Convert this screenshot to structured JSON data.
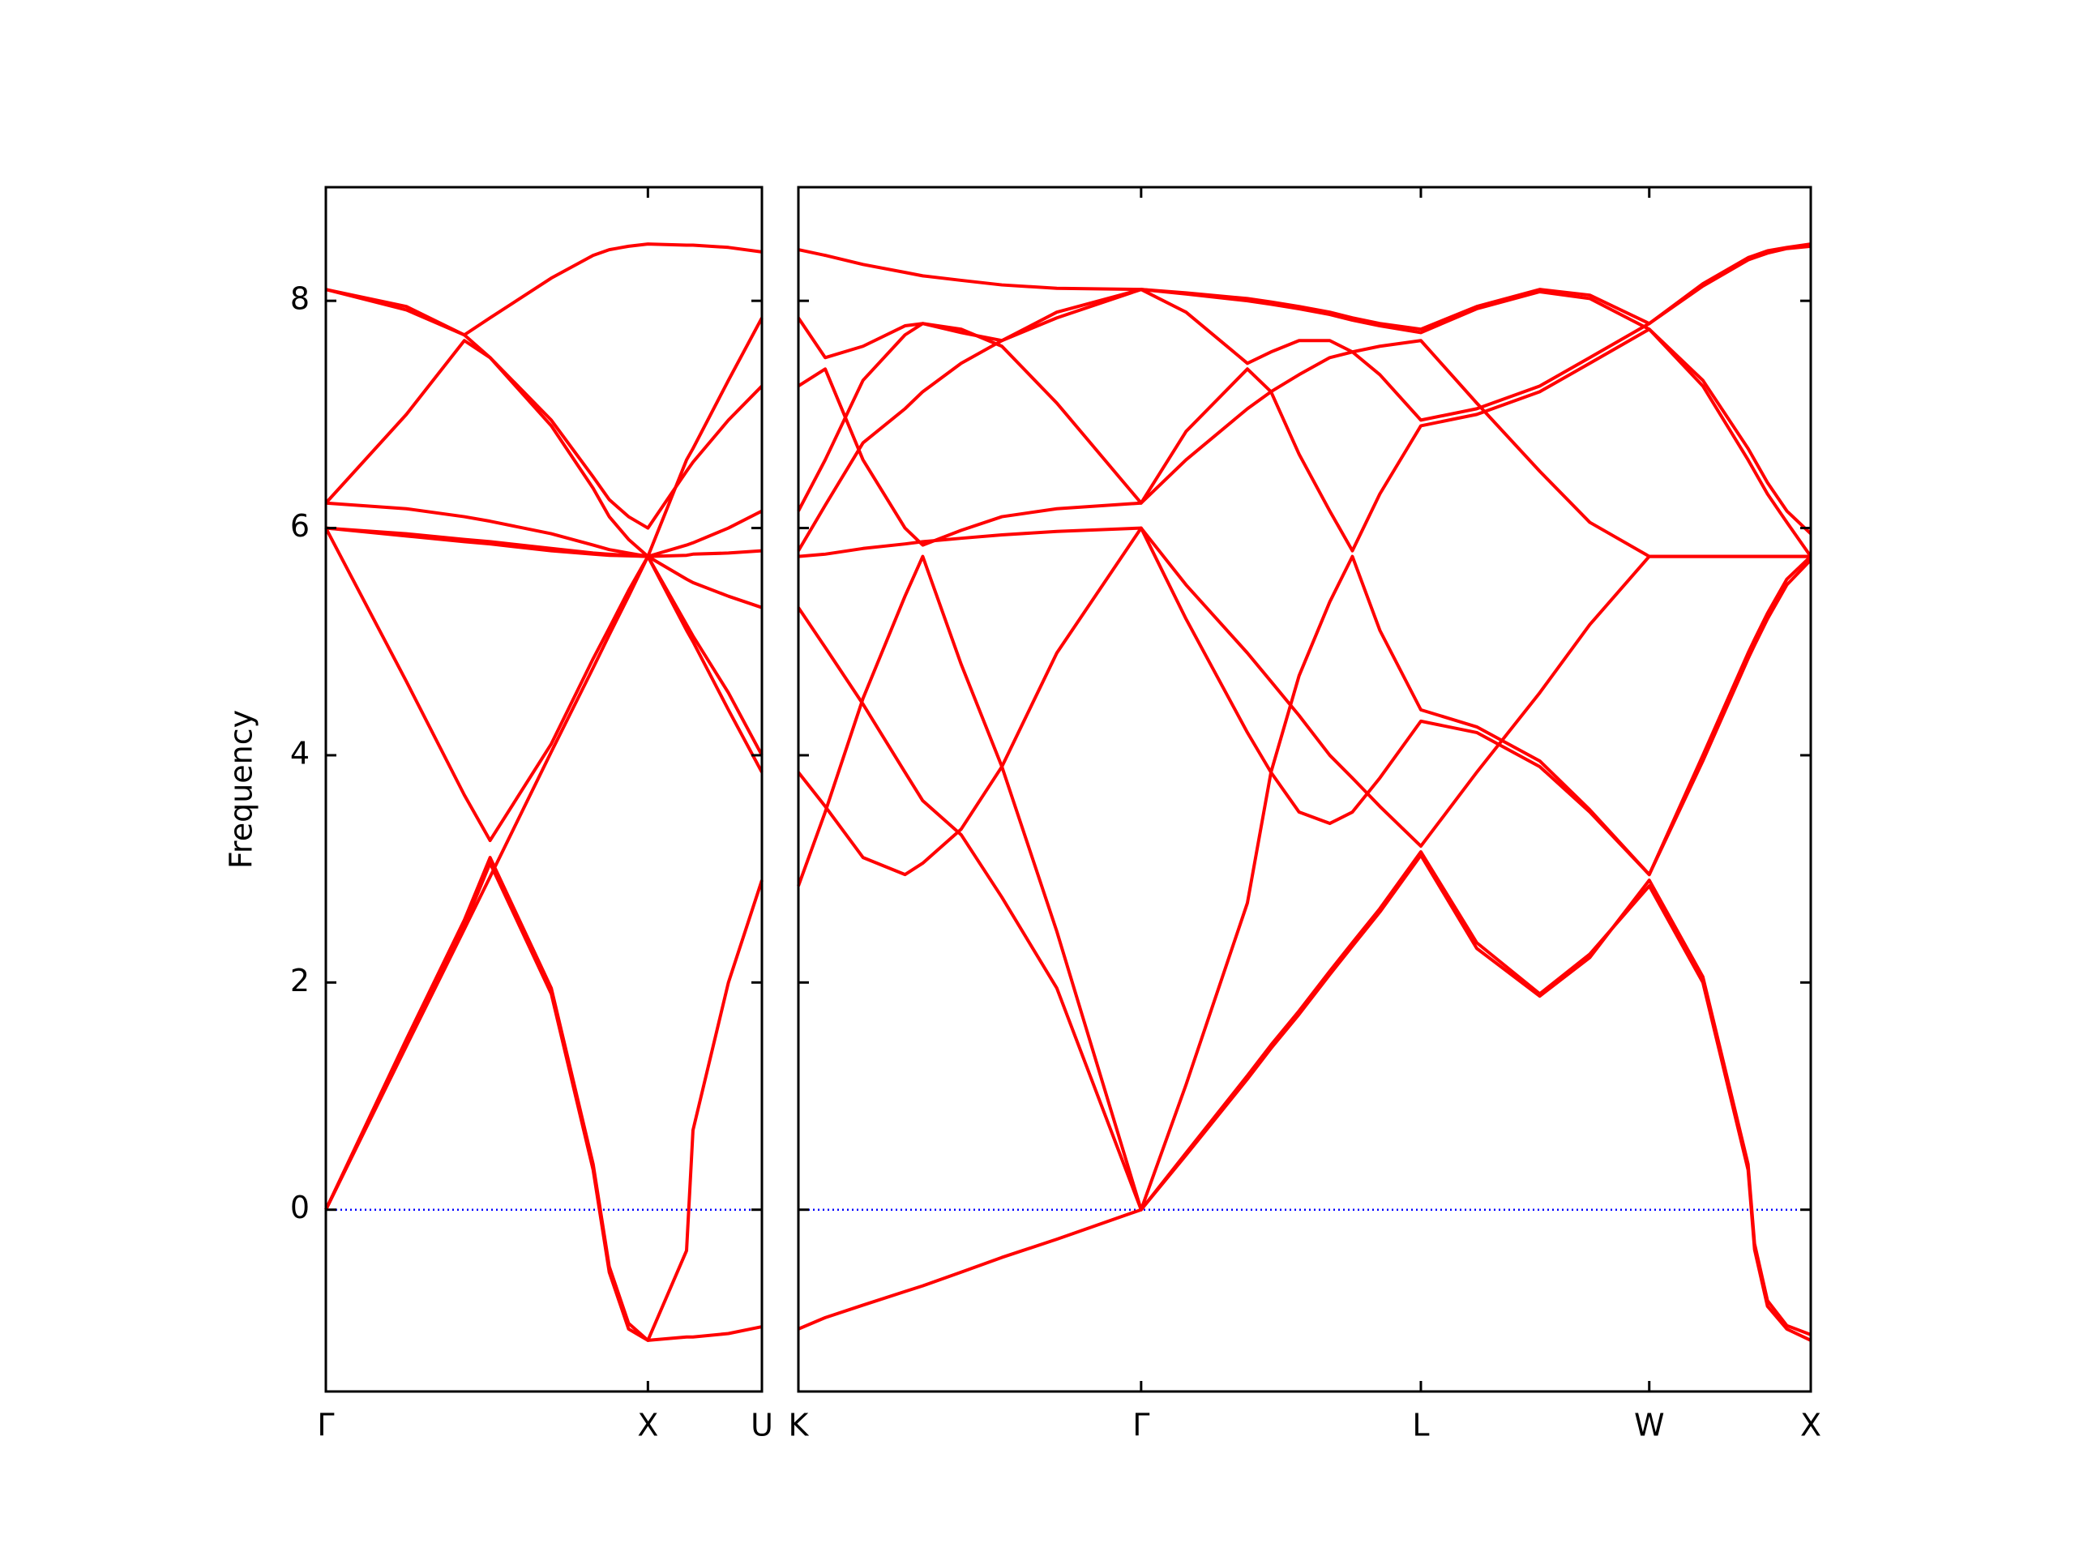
{
  "chart_data": [
    {
      "type": "line",
      "ylabel": "Frequency",
      "color": "#ff0000",
      "zero_line": "#0000ff",
      "xlim": [
        0,
        1.354
      ],
      "ylim": [
        -1.6,
        9.0
      ],
      "xticks": [
        {
          "value": 0,
          "label": "Γ"
        },
        {
          "value": 1,
          "label": "X"
        },
        {
          "value": 1.354,
          "label": "U"
        }
      ],
      "yticks": [
        0,
        2,
        4,
        6,
        8
      ],
      "x": [
        0,
        0.25,
        0.43,
        0.51,
        0.7,
        0.83,
        0.88,
        0.94,
        1.0,
        1.12,
        1.14,
        1.25,
        1.354
      ],
      "series": [
        {
          "values": [
            0,
            1.44,
            2.47,
            2.93,
            4.03,
            4.77,
            5.06,
            5.4,
            5.75,
            5.15,
            5.05,
            4.55,
            4.0
          ]
        },
        {
          "values": [
            0,
            1.5,
            2.55,
            3.1,
            1.95,
            0.4,
            -0.5,
            -1.0,
            -1.15,
            -1.12,
            -1.12,
            -1.09,
            -1.03
          ]
        },
        {
          "values": [
            0,
            1.45,
            2.5,
            3.05,
            1.9,
            0.35,
            -0.55,
            -1.05,
            -1.15,
            -0.36,
            0.7,
            2.0,
            2.9
          ]
        },
        {
          "values": [
            6.0,
            4.65,
            3.65,
            3.25,
            4.1,
            4.85,
            5.12,
            5.45,
            5.75,
            5.1,
            5.0,
            4.4,
            3.85
          ]
        },
        {
          "values": [
            6.0,
            5.95,
            5.9,
            5.88,
            5.82,
            5.78,
            5.77,
            5.76,
            5.75,
            5.85,
            5.87,
            6.0,
            6.15
          ]
        },
        {
          "values": [
            6.0,
            5.93,
            5.88,
            5.86,
            5.8,
            5.77,
            5.76,
            5.755,
            5.75,
            5.76,
            5.77,
            5.78,
            5.8
          ]
        },
        {
          "values": [
            6.22,
            6.17,
            6.1,
            6.06,
            5.95,
            5.85,
            5.81,
            5.78,
            5.75,
            5.55,
            5.52,
            5.4,
            5.3
          ]
        },
        {
          "values": [
            6.22,
            7.0,
            7.65,
            7.5,
            6.95,
            6.45,
            6.25,
            6.1,
            6.0,
            6.5,
            6.58,
            6.95,
            7.25
          ]
        },
        {
          "values": [
            8.1,
            7.95,
            7.7,
            7.5,
            6.9,
            6.35,
            6.1,
            5.9,
            5.75,
            6.6,
            6.7,
            7.3,
            7.85
          ]
        },
        {
          "values": [
            8.1,
            7.92,
            7.7,
            7.85,
            8.2,
            8.4,
            8.45,
            8.48,
            8.5,
            8.49,
            8.49,
            8.47,
            8.43
          ]
        }
      ]
    },
    {
      "type": "line",
      "color": "#ff0000",
      "zero_line": "#0000ff",
      "ytick_labels": false,
      "xlim": [
        0,
        3.134
      ],
      "ylim": [
        -1.6,
        9.0
      ],
      "xticks": [
        {
          "value": 0,
          "label": "K"
        },
        {
          "value": 1.061,
          "label": "Γ"
        },
        {
          "value": 1.927,
          "label": "L"
        },
        {
          "value": 2.634,
          "label": "W"
        },
        {
          "value": 3.134,
          "label": "X"
        }
      ],
      "yticks": [
        0,
        2,
        4,
        6,
        8
      ],
      "x": [
        0,
        0.083,
        0.2,
        0.33,
        0.385,
        0.504,
        0.63,
        0.8,
        1.061,
        1.2,
        1.39,
        1.463,
        1.55,
        1.645,
        1.715,
        1.8,
        1.927,
        2.1,
        2.295,
        2.45,
        2.634,
        2.8,
        2.94,
        2.96,
        3.0,
        3.06,
        3.134
      ],
      "series": [
        {
          "values": [
            -1.05,
            -0.95,
            -0.84,
            -0.72,
            -0.67,
            -0.55,
            -0.42,
            -0.26,
            0,
            0.5,
            1.18,
            1.45,
            1.75,
            2.1,
            2.35,
            2.65,
            3.15,
            2.35,
            1.9,
            2.25,
            2.85,
            2.0,
            0.35,
            -0.35,
            -0.85,
            -1.05,
            -1.15
          ]
        },
        {
          "values": [
            2.85,
            3.5,
            4.5,
            5.4,
            5.75,
            4.8,
            3.9,
            2.45,
            0,
            1.1,
            2.7,
            3.85,
            4.7,
            5.35,
            5.75,
            5.1,
            4.4,
            4.25,
            3.95,
            3.52,
            2.95,
            4.0,
            4.9,
            5.02,
            5.25,
            5.55,
            5.75
          ]
        },
        {
          "values": [
            5.3,
            4.95,
            4.45,
            3.85,
            3.6,
            3.3,
            2.75,
            1.95,
            0,
            0.48,
            1.15,
            1.42,
            1.72,
            2.07,
            2.32,
            2.62,
            3.12,
            2.3,
            1.88,
            2.22,
            2.9,
            2.05,
            0.4,
            -0.3,
            -0.8,
            -1.02,
            -1.1
          ]
        },
        {
          "values": [
            3.85,
            3.55,
            3.1,
            2.95,
            3.05,
            3.35,
            3.9,
            4.9,
            6.0,
            5.2,
            4.2,
            3.85,
            3.5,
            3.4,
            3.5,
            3.8,
            4.3,
            4.2,
            3.9,
            3.5,
            2.95,
            3.95,
            4.85,
            4.97,
            5.2,
            5.5,
            5.72
          ]
        },
        {
          "values": [
            5.75,
            5.77,
            5.82,
            5.86,
            5.88,
            5.91,
            5.94,
            5.97,
            6.0,
            5.5,
            4.9,
            4.65,
            4.35,
            4.0,
            3.8,
            3.55,
            3.2,
            3.85,
            4.55,
            5.15,
            5.75,
            5.75,
            5.75,
            5.75,
            5.75,
            5.75,
            5.75
          ]
        },
        {
          "values": [
            6.15,
            6.6,
            7.3,
            7.7,
            7.8,
            7.75,
            7.6,
            7.1,
            6.22,
            6.6,
            7.05,
            7.2,
            7.35,
            7.5,
            7.55,
            7.6,
            7.65,
            7.1,
            6.5,
            6.05,
            5.75,
            5.75,
            5.75,
            5.75,
            5.75,
            5.75,
            5.75
          ]
        },
        {
          "values": [
            7.25,
            7.4,
            6.6,
            6.0,
            5.85,
            5.98,
            6.1,
            6.17,
            6.22,
            6.85,
            7.4,
            7.2,
            6.65,
            6.15,
            5.8,
            6.3,
            6.9,
            7.0,
            7.2,
            7.45,
            7.75,
            7.3,
            6.7,
            6.6,
            6.4,
            6.15,
            5.95
          ]
        },
        {
          "values": [
            5.8,
            6.2,
            6.75,
            7.05,
            7.2,
            7.45,
            7.65,
            7.85,
            8.1,
            7.9,
            7.45,
            7.55,
            7.65,
            7.65,
            7.55,
            7.35,
            6.95,
            7.05,
            7.25,
            7.5,
            7.8,
            8.15,
            8.38,
            8.4,
            8.44,
            8.47,
            8.5
          ]
        },
        {
          "values": [
            7.85,
            7.5,
            7.6,
            7.78,
            7.8,
            7.72,
            7.65,
            7.9,
            8.1,
            8.07,
            8.02,
            7.99,
            7.95,
            7.9,
            7.85,
            7.8,
            7.75,
            7.95,
            8.1,
            8.05,
            7.8,
            8.13,
            8.36,
            8.38,
            8.42,
            8.46,
            8.48
          ]
        },
        {
          "values": [
            8.45,
            8.4,
            8.32,
            8.25,
            8.22,
            8.18,
            8.14,
            8.11,
            8.1,
            8.06,
            8.0,
            7.97,
            7.93,
            7.88,
            7.83,
            7.78,
            7.72,
            7.93,
            8.08,
            8.02,
            7.75,
            7.25,
            6.6,
            6.5,
            6.3,
            6.05,
            5.75
          ]
        }
      ]
    }
  ]
}
